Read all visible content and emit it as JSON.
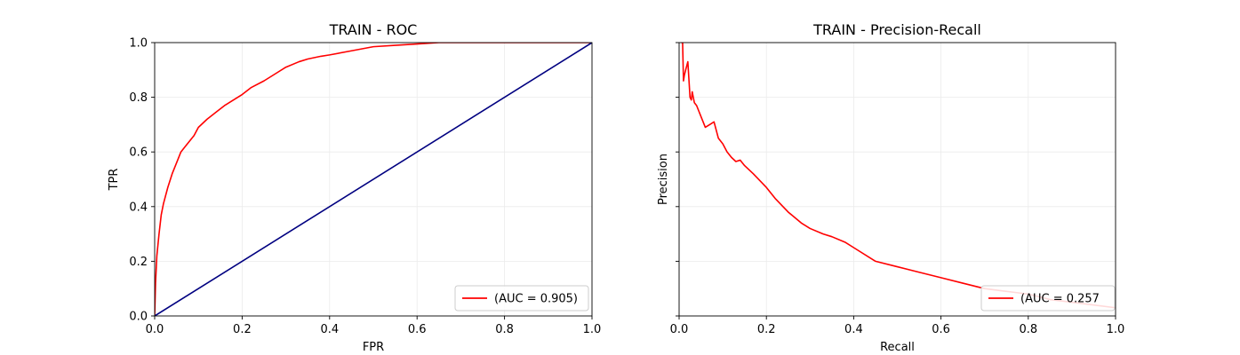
{
  "chart_data": [
    {
      "type": "line",
      "title": "TRAIN - ROC",
      "xlabel": "FPR",
      "ylabel": "TPR",
      "xlim": [
        0,
        1
      ],
      "ylim": [
        0,
        1
      ],
      "xticks": [
        "0.0",
        "0.2",
        "0.4",
        "0.6",
        "0.8",
        "1.0"
      ],
      "yticks": [
        "0.0",
        "0.2",
        "0.4",
        "0.6",
        "0.8",
        "1.0"
      ],
      "grid": true,
      "legend": "lower-right",
      "series": [
        {
          "name": "(AUC = 0.905)",
          "color": "#ff0000",
          "x": [
            0,
            0.002,
            0.005,
            0.01,
            0.015,
            0.02,
            0.03,
            0.04,
            0.05,
            0.06,
            0.07,
            0.08,
            0.09,
            0.1,
            0.12,
            0.14,
            0.16,
            0.18,
            0.2,
            0.22,
            0.25,
            0.28,
            0.3,
            0.33,
            0.35,
            0.38,
            0.4,
            0.45,
            0.5,
            0.55,
            0.6,
            0.65,
            0.7,
            0.8,
            0.9,
            1.0
          ],
          "y": [
            0,
            0.12,
            0.22,
            0.3,
            0.37,
            0.41,
            0.47,
            0.52,
            0.56,
            0.6,
            0.62,
            0.64,
            0.66,
            0.69,
            0.72,
            0.745,
            0.77,
            0.79,
            0.81,
            0.835,
            0.86,
            0.89,
            0.91,
            0.93,
            0.94,
            0.95,
            0.955,
            0.97,
            0.985,
            0.99,
            0.995,
            1.0,
            1.0,
            1.0,
            1.0,
            1.0
          ]
        },
        {
          "color": "#000080",
          "x": [
            0,
            1
          ],
          "y": [
            0,
            1
          ]
        }
      ]
    },
    {
      "type": "line",
      "title": "TRAIN - Precision-Recall",
      "xlabel": "Recall",
      "ylabel": "Precision",
      "xlim": [
        0,
        1
      ],
      "ylim": [
        0,
        1
      ],
      "xticks": [
        "0.0",
        "0.2",
        "0.4",
        "0.6",
        "0.8",
        "1.0"
      ],
      "yticks": [
        "",
        "",
        "",
        "",
        "",
        ""
      ],
      "grid": true,
      "legend": "lower-right",
      "series": [
        {
          "name": "(AUC = 0.257",
          "color": "#ff0000",
          "x": [
            0.005,
            0.008,
            0.01,
            0.012,
            0.015,
            0.02,
            0.025,
            0.028,
            0.03,
            0.035,
            0.04,
            0.045,
            0.05,
            0.06,
            0.07,
            0.08,
            0.09,
            0.1,
            0.11,
            0.12,
            0.13,
            0.14,
            0.15,
            0.17,
            0.2,
            0.22,
            0.25,
            0.28,
            0.3,
            0.33,
            0.35,
            0.38,
            0.4,
            0.45,
            0.5,
            0.55,
            0.6,
            0.65,
            0.7,
            0.75,
            0.8,
            0.85,
            0.9,
            0.95,
            1.0
          ],
          "y": [
            1.0,
            1.0,
            0.86,
            0.88,
            0.9,
            0.93,
            0.8,
            0.79,
            0.82,
            0.78,
            0.77,
            0.75,
            0.73,
            0.69,
            0.7,
            0.71,
            0.65,
            0.63,
            0.6,
            0.58,
            0.565,
            0.57,
            0.55,
            0.52,
            0.47,
            0.43,
            0.38,
            0.34,
            0.32,
            0.3,
            0.29,
            0.27,
            0.25,
            0.2,
            0.18,
            0.16,
            0.14,
            0.12,
            0.1,
            0.09,
            0.08,
            0.06,
            0.05,
            0.04,
            0.03
          ]
        }
      ]
    }
  ]
}
